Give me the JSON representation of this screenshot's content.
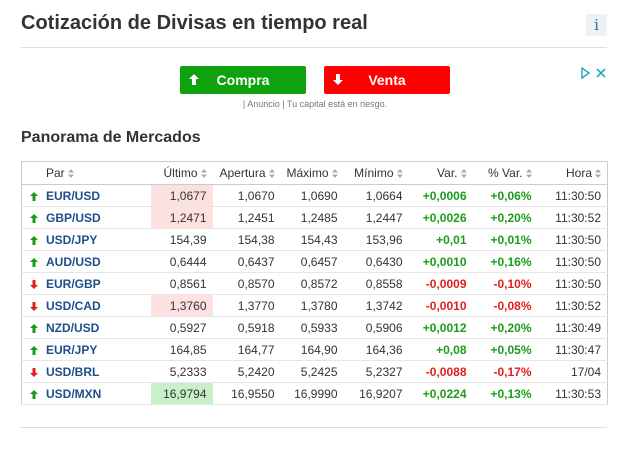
{
  "header": {
    "title": "Cotización de Divisas en tiempo real",
    "info": "i"
  },
  "ad": {
    "buy": "Compra",
    "sell": "Venta",
    "note": "| Anuncio | Tu capital está en riesgo."
  },
  "section": {
    "title": "Panorama de Mercados"
  },
  "table": {
    "columns": [
      "Par",
      "Último",
      "Apertura",
      "Máximo",
      "Mínimo",
      "Var.",
      "% Var.",
      "Hora"
    ],
    "rows": [
      {
        "direction": "up",
        "highlight": "red",
        "cells": [
          "EUR/USD",
          "1,0677",
          "1,0670",
          "1,0690",
          "1,0664",
          "+0,0006",
          "+0,06%",
          "11:30:50"
        ]
      },
      {
        "direction": "up",
        "highlight": "red",
        "cells": [
          "GBP/USD",
          "1,2471",
          "1,2451",
          "1,2485",
          "1,2447",
          "+0,0026",
          "+0,20%",
          "11:30:52"
        ]
      },
      {
        "direction": "up",
        "highlight": "none",
        "cells": [
          "USD/JPY",
          "154,39",
          "154,38",
          "154,43",
          "153,96",
          "+0,01",
          "+0,01%",
          "11:30:50"
        ]
      },
      {
        "direction": "up",
        "highlight": "none",
        "cells": [
          "AUD/USD",
          "0,6444",
          "0,6437",
          "0,6457",
          "0,6430",
          "+0,0010",
          "+0,16%",
          "11:30:50"
        ]
      },
      {
        "direction": "down",
        "highlight": "none",
        "cells": [
          "EUR/GBP",
          "0,8561",
          "0,8570",
          "0,8572",
          "0,8558",
          "-0,0009",
          "-0,10%",
          "11:30:50"
        ]
      },
      {
        "direction": "down",
        "highlight": "red",
        "cells": [
          "USD/CAD",
          "1,3760",
          "1,3770",
          "1,3780",
          "1,3742",
          "-0,0010",
          "-0,08%",
          "11:30:52"
        ]
      },
      {
        "direction": "up",
        "highlight": "none",
        "cells": [
          "NZD/USD",
          "0,5927",
          "0,5918",
          "0,5933",
          "0,5906",
          "+0,0012",
          "+0,20%",
          "11:30:49"
        ]
      },
      {
        "direction": "up",
        "highlight": "none",
        "cells": [
          "EUR/JPY",
          "164,85",
          "164,77",
          "164,90",
          "164,36",
          "+0,08",
          "+0,05%",
          "11:30:47"
        ]
      },
      {
        "direction": "down",
        "highlight": "none",
        "cells": [
          "USD/BRL",
          "5,2333",
          "5,2420",
          "5,2425",
          "5,2327",
          "-0,0088",
          "-0,17%",
          "17/04"
        ]
      },
      {
        "direction": "up",
        "highlight": "green",
        "cells": [
          "USD/MXN",
          "16,9794",
          "16,9550",
          "16,9990",
          "16,9207",
          "+0,0224",
          "+0,13%",
          "11:30:53"
        ]
      }
    ]
  }
}
